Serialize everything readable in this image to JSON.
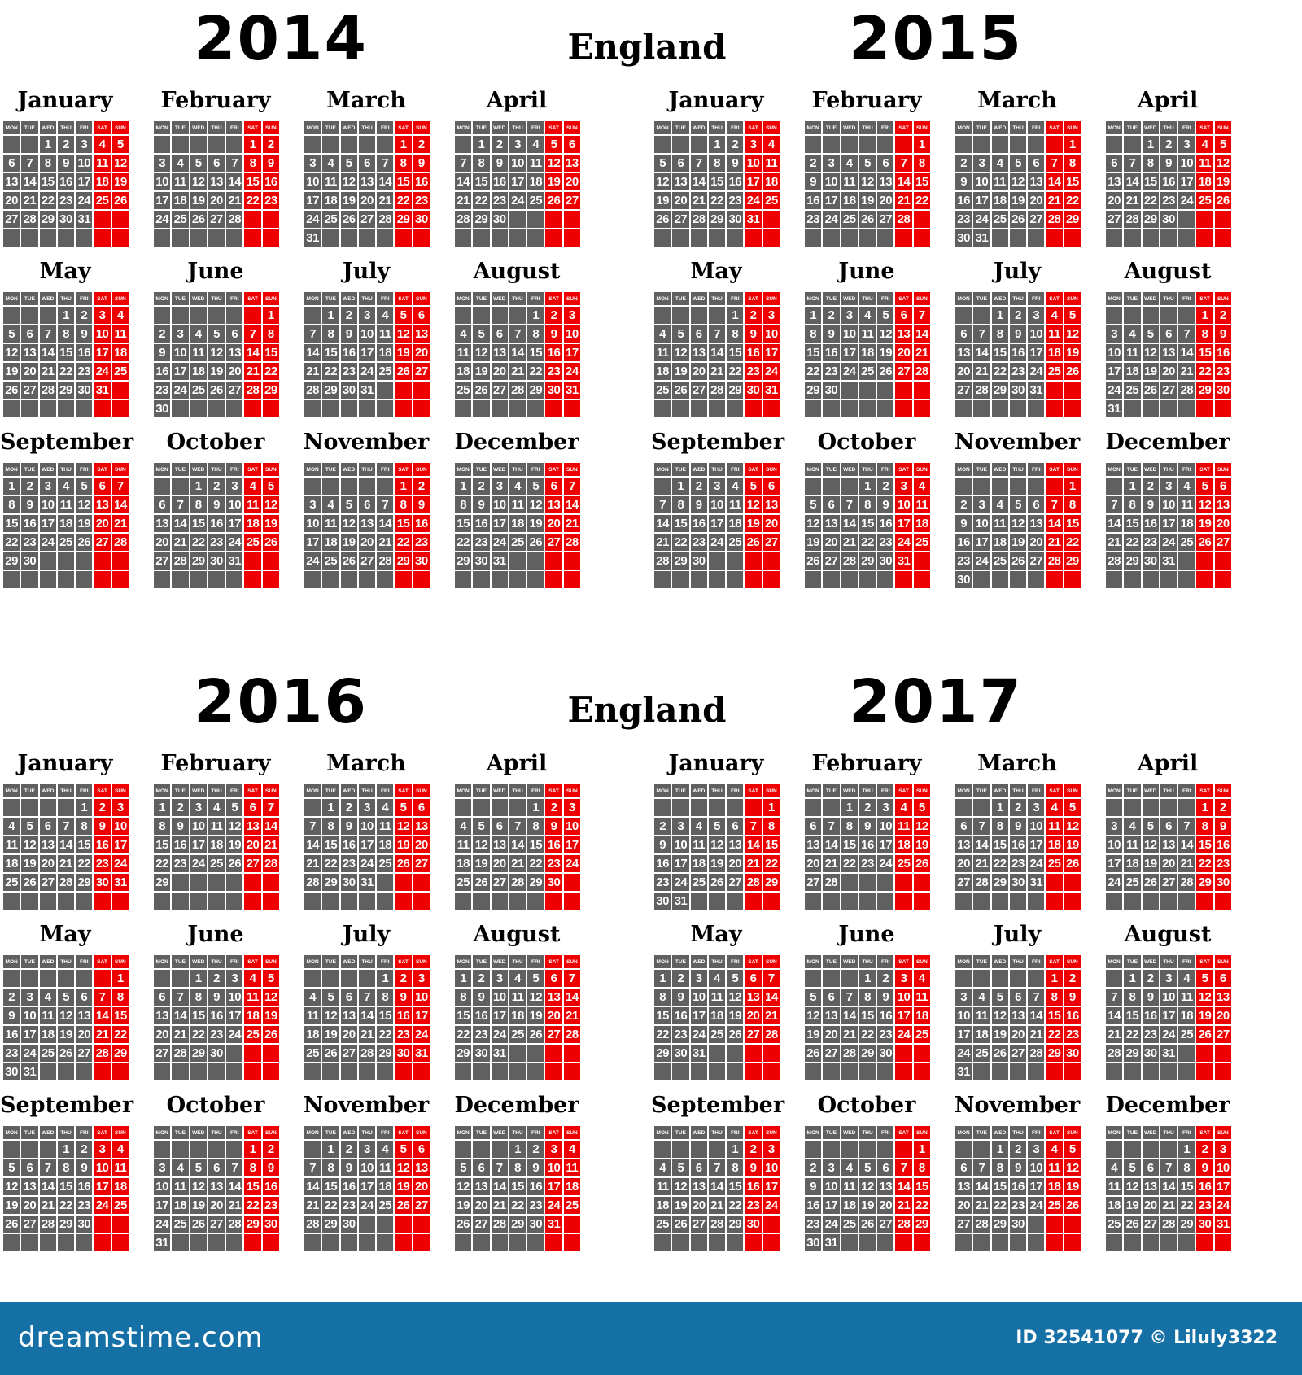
{
  "country": "England",
  "years": [
    "2014",
    "2015",
    "2016",
    "2017"
  ],
  "month_names": [
    "January",
    "February",
    "March",
    "April",
    "May",
    "June",
    "July",
    "August",
    "September",
    "October",
    "November",
    "December"
  ],
  "weekdays": [
    "MON",
    "TUE",
    "WED",
    "THU",
    "FRI",
    "SAT",
    "SUN"
  ],
  "watermark": {
    "brand": "dreamstime.com",
    "credit": "ID 32541077 © Liluly3322"
  },
  "colors": {
    "weekday_cell": "#606060",
    "weekend_cell": "#ee0000",
    "cell_text": "#ffffff",
    "footer": "#1570a6"
  }
}
